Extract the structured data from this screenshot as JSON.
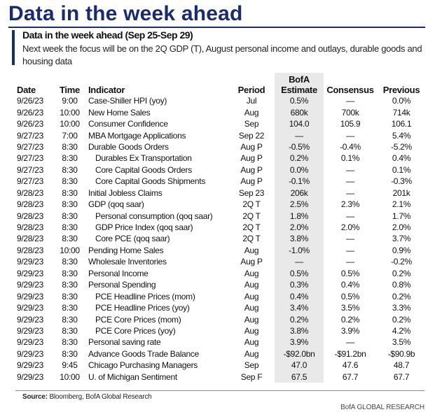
{
  "title": "Data in the week ahead",
  "subtitle": "Data in the week ahead (Sep 25-Sep 29)",
  "description": "Next week the focus will be on the 2Q GDP (T), August personal income and outlays, durable goods and housing data",
  "columns": {
    "date": "Date",
    "time": "Time",
    "indicator": "Indicator",
    "period": "Period",
    "bofa_line1": "BofA",
    "bofa_line2": "Estimate",
    "consensus": "Consensus",
    "previous": "Previous"
  },
  "rows": [
    {
      "date": "9/26/23",
      "time": "9:00",
      "indicator": "Case-Shiller HPI (yoy)",
      "sub": false,
      "period": "Jul",
      "bofa": "0.5%",
      "consensus": "—",
      "previous": "0.0%"
    },
    {
      "date": "9/26/23",
      "time": "10:00",
      "indicator": "New Home Sales",
      "sub": false,
      "period": "Aug",
      "bofa": "680k",
      "consensus": "700k",
      "previous": "714k"
    },
    {
      "date": "9/26/23",
      "time": "10:00",
      "indicator": "Consumer Confidence",
      "sub": false,
      "period": "Sep",
      "bofa": "104.0",
      "consensus": "105.9",
      "previous": "106.1"
    },
    {
      "date": "9/27/23",
      "time": "7:00",
      "indicator": "MBA Mortgage Applications",
      "sub": false,
      "period": "Sep 22",
      "bofa": "—",
      "consensus": "—",
      "previous": "5.4%"
    },
    {
      "date": "9/27/23",
      "time": "8:30",
      "indicator": "Durable Goods Orders",
      "sub": false,
      "period": "Aug P",
      "bofa": "-0.5%",
      "consensus": "-0.4%",
      "previous": "-5.2%"
    },
    {
      "date": "9/27/23",
      "time": "8:30",
      "indicator": "Durables Ex Transportation",
      "sub": true,
      "period": "Aug P",
      "bofa": "0.2%",
      "consensus": "0.1%",
      "previous": "0.4%"
    },
    {
      "date": "9/27/23",
      "time": "8:30",
      "indicator": "Core Capital Goods Orders",
      "sub": true,
      "period": "Aug P",
      "bofa": "0.0%",
      "consensus": "—",
      "previous": "0.1%"
    },
    {
      "date": "9/27/23",
      "time": "8:30",
      "indicator": "Core Capital Goods Shipments",
      "sub": true,
      "period": "Aug P",
      "bofa": "-0.1%",
      "consensus": "—",
      "previous": "-0.3%"
    },
    {
      "date": "9/28/23",
      "time": "8:30",
      "indicator": "Initial Jobless Claims",
      "sub": false,
      "period": "Sep 23",
      "bofa": "206k",
      "consensus": "—",
      "previous": "201k"
    },
    {
      "date": "9/28/23",
      "time": "8:30",
      "indicator": "GDP (qoq saar)",
      "sub": false,
      "period": "2Q T",
      "bofa": "2.5%",
      "consensus": "2.3%",
      "previous": "2.1%"
    },
    {
      "date": "9/28/23",
      "time": "8:30",
      "indicator": "Personal consumption (qoq saar)",
      "sub": true,
      "period": "2Q T",
      "bofa": "1.8%",
      "consensus": "—",
      "previous": "1.7%"
    },
    {
      "date": "9/28/23",
      "time": "8:30",
      "indicator": "GDP Price Index (qoq saar)",
      "sub": true,
      "period": "2Q T",
      "bofa": "2.0%",
      "consensus": "2.0%",
      "previous": "2.0%"
    },
    {
      "date": "9/28/23",
      "time": "8:30",
      "indicator": "Core PCE (qoq saar)",
      "sub": true,
      "period": "2Q T",
      "bofa": "3.8%",
      "consensus": "—",
      "previous": "3.7%"
    },
    {
      "date": "9/28/23",
      "time": "10:00",
      "indicator": "Pending Home Sales",
      "sub": false,
      "period": "Aug",
      "bofa": "-1.0%",
      "consensus": "—",
      "previous": "0.9%"
    },
    {
      "date": "9/29/23",
      "time": "8:30",
      "indicator": "Wholesale Inventories",
      "sub": false,
      "period": "Aug P",
      "bofa": "—",
      "consensus": "—",
      "previous": "-0.2%"
    },
    {
      "date": "9/29/23",
      "time": "8:30",
      "indicator": "Personal Income",
      "sub": false,
      "period": "Aug",
      "bofa": "0.5%",
      "consensus": "0.5%",
      "previous": "0.2%"
    },
    {
      "date": "9/29/23",
      "time": "8:30",
      "indicator": "Personal Spending",
      "sub": false,
      "period": "Aug",
      "bofa": "0.3%",
      "consensus": "0.4%",
      "previous": "0.8%"
    },
    {
      "date": "9/29/23",
      "time": "8:30",
      "indicator": "PCE Headline Prices (mom)",
      "sub": true,
      "period": "Aug",
      "bofa": "0.4%",
      "consensus": "0.5%",
      "previous": "0.2%"
    },
    {
      "date": "9/29/23",
      "time": "8:30",
      "indicator": "PCE Headline Prices (yoy)",
      "sub": true,
      "period": "Aug",
      "bofa": "3.4%",
      "consensus": "3.5%",
      "previous": "3.3%"
    },
    {
      "date": "9/29/23",
      "time": "8:30",
      "indicator": "PCE Core Prices (mom)",
      "sub": true,
      "period": "Aug",
      "bofa": "0.2%",
      "consensus": "0.2%",
      "previous": "0.2%"
    },
    {
      "date": "9/29/23",
      "time": "8:30",
      "indicator": "PCE Core Prices (yoy)",
      "sub": true,
      "period": "Aug",
      "bofa": "3.8%",
      "consensus": "3.9%",
      "previous": "4.2%"
    },
    {
      "date": "9/29/23",
      "time": "8:30",
      "indicator": "Personal saving rate",
      "sub": false,
      "period": "Aug",
      "bofa": "3.9%",
      "consensus": "—",
      "previous": "3.5%"
    },
    {
      "date": "9/29/23",
      "time": "8:30",
      "indicator": "Advance Goods Trade Balance",
      "sub": false,
      "period": "Aug",
      "bofa": "-$92.0bn",
      "consensus": "-$91.2bn",
      "previous": "-$90.9b"
    },
    {
      "date": "9/29/23",
      "time": "9:45",
      "indicator": "Chicago Purchasing Managers",
      "sub": false,
      "period": "Sep",
      "bofa": "47.0",
      "consensus": "47.6",
      "previous": "48.7"
    },
    {
      "date": "9/29/23",
      "time": "10:00",
      "indicator": "U. of Michigan Sentiment",
      "sub": false,
      "period": "Sep F",
      "bofa": "67.5",
      "consensus": "67.7",
      "previous": "67.7"
    }
  ],
  "source": {
    "label": "Source:",
    "text": "Bloomberg, BofA Global Research"
  },
  "credit": "BofA GLOBAL RESEARCH"
}
